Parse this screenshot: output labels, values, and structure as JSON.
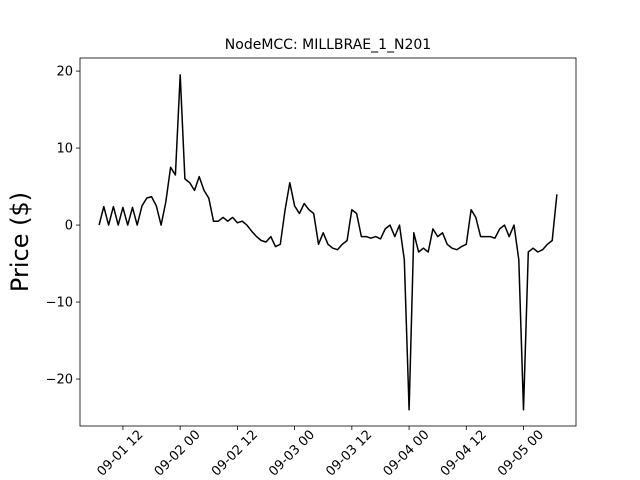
{
  "chart_data": {
    "type": "line",
    "title": "NodeMCC: MILLBRAE_1_N201",
    "ylabel": "Price ($)",
    "x": [
      "09-01 07",
      "09-01 08",
      "09-01 09",
      "09-01 10",
      "09-01 11",
      "09-01 12",
      "09-01 13",
      "09-01 14",
      "09-01 15",
      "09-01 16",
      "09-01 17",
      "09-01 18",
      "09-01 19",
      "09-01 20",
      "09-01 21",
      "09-01 22",
      "09-01 23",
      "09-02 00",
      "09-02 01",
      "09-02 02",
      "09-02 03",
      "09-02 04",
      "09-02 05",
      "09-02 06",
      "09-02 07",
      "09-02 08",
      "09-02 09",
      "09-02 10",
      "09-02 11",
      "09-02 12",
      "09-02 13",
      "09-02 14",
      "09-02 15",
      "09-02 16",
      "09-02 17",
      "09-02 18",
      "09-02 19",
      "09-02 20",
      "09-02 21",
      "09-02 22",
      "09-02 23",
      "09-03 00",
      "09-03 01",
      "09-03 02",
      "09-03 03",
      "09-03 04",
      "09-03 05",
      "09-03 06",
      "09-03 07",
      "09-03 08",
      "09-03 09",
      "09-03 10",
      "09-03 11",
      "09-03 12",
      "09-03 13",
      "09-03 14",
      "09-03 15",
      "09-03 16",
      "09-03 17",
      "09-03 18",
      "09-03 19",
      "09-03 20",
      "09-03 21",
      "09-03 22",
      "09-03 23",
      "09-04 00",
      "09-04 01",
      "09-04 02",
      "09-04 03",
      "09-04 04",
      "09-04 05",
      "09-04 06",
      "09-04 07",
      "09-04 08",
      "09-04 09",
      "09-04 10",
      "09-04 11",
      "09-04 12",
      "09-04 13",
      "09-04 14",
      "09-04 15",
      "09-04 16",
      "09-04 17",
      "09-04 18",
      "09-04 19",
      "09-04 20",
      "09-04 21",
      "09-04 22",
      "09-04 23",
      "09-05 00",
      "09-05 01",
      "09-05 02",
      "09-05 03",
      "09-05 04",
      "09-05 05",
      "09-05 06",
      "09-05 07"
    ],
    "series": [
      {
        "color": "#000000",
        "values": [
          0,
          2.4,
          0,
          2.4,
          0,
          2.3,
          0,
          2.3,
          0,
          2.5,
          3.5,
          3.7,
          2.5,
          0,
          3.0,
          7.5,
          6.5,
          19.5,
          6,
          5.5,
          4.5,
          6.3,
          4.5,
          3.5,
          0.5,
          0.5,
          1.0,
          0.5,
          1.0,
          0.3,
          0.5,
          0,
          -0.8,
          -1.5,
          -2,
          -2.2,
          -1.5,
          -2.8,
          -2.5,
          2,
          5.5,
          2.5,
          1.5,
          2.8,
          2.0,
          1.5,
          -2.5,
          -1,
          -2.5,
          -3,
          -3.2,
          -2.5,
          -2,
          2.0,
          1.5,
          -1.5,
          -1.5,
          -1.7,
          -1.5,
          -1.8,
          -0.5,
          0,
          -1.5,
          0,
          -4.5,
          -24,
          -1,
          -3.5,
          -3,
          -3.5,
          -0.5,
          -1.5,
          -1,
          -2.5,
          -3,
          -3.2,
          -2.8,
          -2.5,
          2,
          1,
          -1.5,
          -1.5,
          -1.5,
          -1.7,
          -0.5,
          0,
          -1.5,
          0,
          -4.5,
          -24,
          -3.5,
          -3,
          -3.5,
          -3.2,
          -2.5,
          -2,
          4
        ]
      }
    ],
    "xlim": [
      "09-01 03",
      "09-05 11"
    ],
    "xticks": [
      "09-01 12",
      "09-02 00",
      "09-02 12",
      "09-03 00",
      "09-03 12",
      "09-04 00",
      "09-04 12",
      "09-05 00"
    ],
    "ylim": [
      -26.1,
      21.7
    ],
    "yticks": [
      {
        "value": -20,
        "label": "−20"
      },
      {
        "value": -10,
        "label": "−10"
      },
      0,
      10,
      20
    ]
  }
}
